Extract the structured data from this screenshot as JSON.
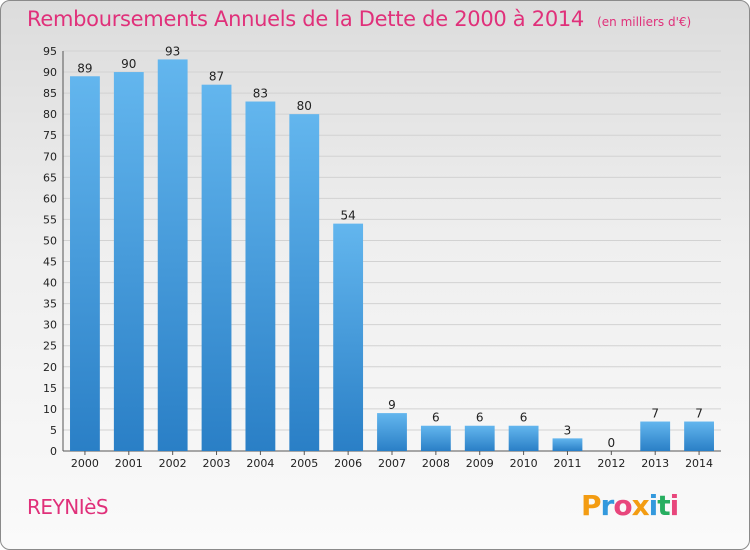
{
  "chart_title": "Remboursements Annuels de la Dette de 2000 à 2014",
  "chart_subtitle": "(en milliers d'€)",
  "commune": "REYNIèS",
  "brand": {
    "text": "Proxiti",
    "letter_colors": [
      "#f39c12",
      "#3399dd",
      "#e8467c",
      "#f39c12",
      "#3399dd",
      "#27ae60",
      "#e8467c"
    ]
  },
  "colors": {
    "title": "#e0307a",
    "bar_light": "#63b6ee",
    "bar_dark": "#2a7fc6",
    "grid": "#d2d2d2",
    "axis_text": "#222222"
  },
  "chart_data": {
    "type": "bar",
    "title": "Remboursements Annuels de la Dette de 2000 à 2014",
    "subtitle": "(en milliers d'€)",
    "categories": [
      "2000",
      "2001",
      "2002",
      "2003",
      "2004",
      "2005",
      "2006",
      "2007",
      "2008",
      "2009",
      "2010",
      "2011",
      "2012",
      "2013",
      "2014"
    ],
    "values": [
      89,
      90,
      93,
      87,
      83,
      80,
      54,
      9,
      6,
      6,
      6,
      3,
      0,
      7,
      7
    ],
    "ylim": [
      0,
      95
    ],
    "ytick_step": 5,
    "xlabel": "",
    "ylabel": "",
    "grid": true,
    "legend": false
  }
}
